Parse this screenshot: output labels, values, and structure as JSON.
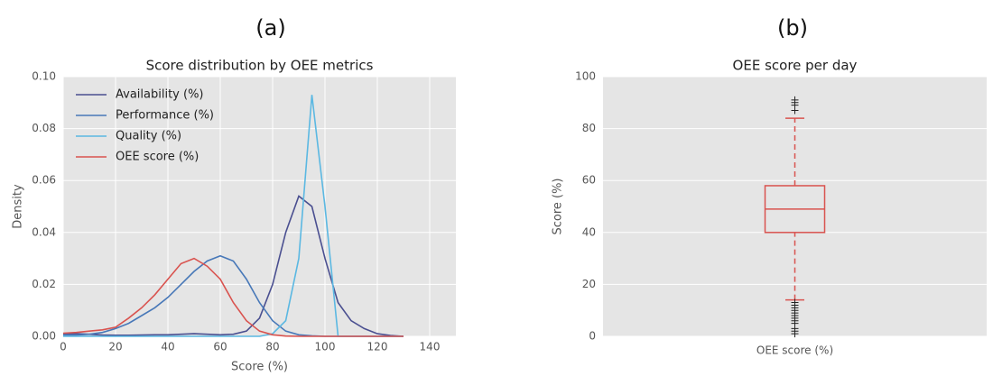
{
  "panels": [
    "(a)",
    "(b)"
  ],
  "chart_data": [
    {
      "type": "line",
      "title": "Score distribution by OEE metrics",
      "xlabel": "Score (%)",
      "ylabel": "Density",
      "x": [
        0,
        5,
        10,
        15,
        20,
        25,
        30,
        35,
        40,
        45,
        50,
        55,
        60,
        65,
        70,
        75,
        80,
        85,
        90,
        95,
        100,
        105,
        110,
        115,
        120,
        125,
        130
      ],
      "series": [
        {
          "name": "Availability (%)",
          "color": "#4a4f90",
          "values": [
            0.001,
            0.001,
            0.0008,
            0.0005,
            0.0004,
            0.0004,
            0.0005,
            0.0006,
            0.0006,
            0.0008,
            0.001,
            0.0008,
            0.0006,
            0.0008,
            0.002,
            0.007,
            0.02,
            0.04,
            0.054,
            0.05,
            0.03,
            0.013,
            0.006,
            0.003,
            0.001,
            0.0003,
            0
          ]
        },
        {
          "name": "Performance (%)",
          "color": "#4878b8",
          "values": [
            0.0005,
            0.0005,
            0.0008,
            0.0015,
            0.003,
            0.005,
            0.008,
            0.011,
            0.015,
            0.02,
            0.025,
            0.029,
            0.031,
            0.029,
            0.022,
            0.013,
            0.006,
            0.002,
            0.0006,
            0.0002,
            0,
            0,
            0,
            0,
            0,
            0,
            0
          ]
        },
        {
          "name": "Quality (%)",
          "color": "#5bb8e2",
          "values": [
            0,
            0,
            0,
            0,
            0,
            0,
            0,
            0,
            0,
            0,
            0,
            0,
            0,
            0,
            0,
            0,
            0.001,
            0.006,
            0.03,
            0.093,
            0.05,
            0,
            0,
            0,
            0,
            0,
            0
          ]
        },
        {
          "name": "OEE score (%)",
          "color": "#d9534f",
          "values": [
            0.0012,
            0.0015,
            0.002,
            0.0025,
            0.0035,
            0.007,
            0.011,
            0.016,
            0.022,
            0.028,
            0.03,
            0.027,
            0.022,
            0.013,
            0.006,
            0.002,
            0.0006,
            0.0001,
            0,
            0,
            0,
            0,
            0,
            0,
            0,
            0,
            0
          ]
        }
      ],
      "xlim": [
        0,
        150
      ],
      "xticks": [
        0,
        20,
        40,
        60,
        80,
        100,
        120,
        140
      ],
      "ylim": [
        0,
        0.1
      ],
      "yticks": [
        {
          "value": 0,
          "label": "0.00"
        },
        {
          "value": 0.02,
          "label": "0.02"
        },
        {
          "value": 0.04,
          "label": "0.04"
        },
        {
          "value": 0.06,
          "label": "0.06"
        },
        {
          "value": 0.08,
          "label": "0.08"
        },
        {
          "value": 0.1,
          "label": "0.10"
        }
      ],
      "grid": true,
      "legend": "upper left"
    },
    {
      "type": "box",
      "title": "OEE score per day",
      "ylabel": "Score (%)",
      "categories": [
        "OEE score (%)"
      ],
      "color": "#d9534f",
      "boxes": [
        {
          "whislo": 14,
          "q1": 40,
          "median": 49,
          "q3": 58,
          "whishi": 84,
          "fliers": [
            87,
            89,
            90,
            91,
            1,
            2,
            3,
            5,
            6,
            7,
            8,
            9,
            10,
            11,
            12,
            13
          ]
        }
      ],
      "ylim": [
        0,
        100
      ],
      "yticks": [
        0,
        20,
        40,
        60,
        80,
        100
      ],
      "grid": true
    }
  ]
}
